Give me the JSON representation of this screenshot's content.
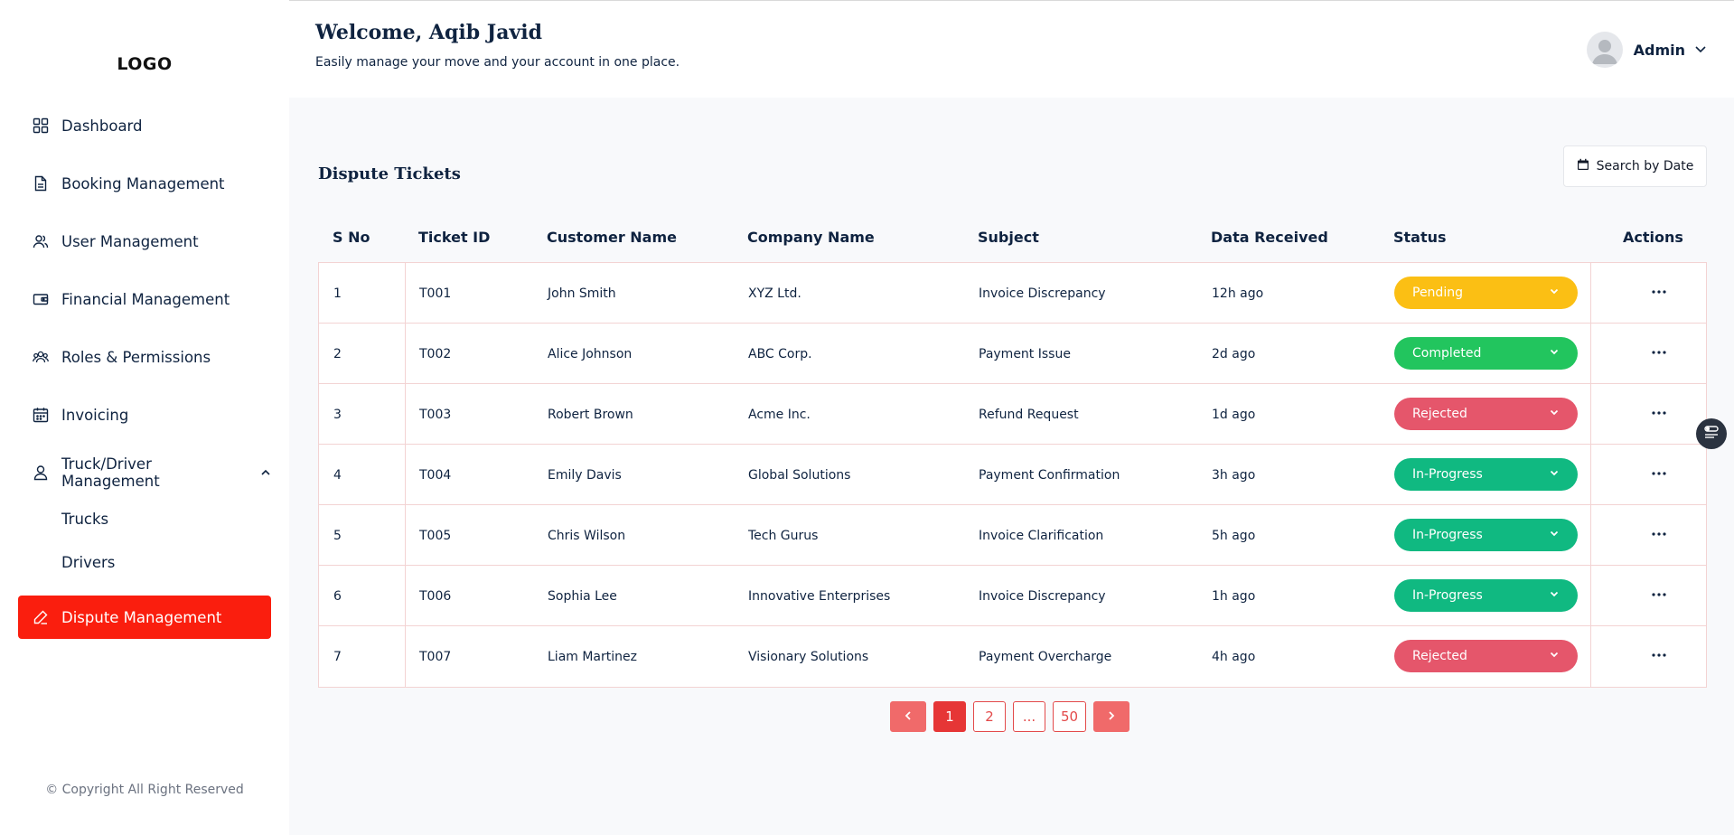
{
  "sidebar": {
    "logo": "LOGO",
    "items": [
      {
        "label": "Dashboard",
        "icon": "dashboard-icon"
      },
      {
        "label": "Booking Management",
        "icon": "document-icon"
      },
      {
        "label": "User Management",
        "icon": "users-icon"
      },
      {
        "label": "Financial Management",
        "icon": "wallet-icon"
      },
      {
        "label": "Roles & Permissions",
        "icon": "group-icon"
      },
      {
        "label": "Invoicing",
        "icon": "calendar-icon"
      },
      {
        "label": "Truck/Driver Management",
        "icon": "user-icon",
        "expanded": true
      }
    ],
    "subitems": [
      "Trucks",
      "Drivers"
    ],
    "active_item": {
      "label": "Dispute Management",
      "icon": "edit-icon"
    },
    "copyright": "© Copyright All Right Reserved"
  },
  "header": {
    "welcome": "Welcome, Aqib Javid",
    "subtitle": "Easily manage your move and your account in one place.",
    "user_label": "Admin"
  },
  "main": {
    "title": "Dispute Tickets",
    "search_date_label": "Search by Date",
    "columns": [
      "S No",
      "Ticket ID",
      "Customer Name",
      "Company Name",
      "Subject",
      "Data Received",
      "Status",
      "Actions"
    ],
    "rows": [
      {
        "sno": "1",
        "ticket": "T001",
        "customer": "John Smith",
        "company": "XYZ Ltd.",
        "subject": "Invoice Discrepancy",
        "received": "12h ago",
        "status": "Pending"
      },
      {
        "sno": "2",
        "ticket": "T002",
        "customer": "Alice Johnson",
        "company": "ABC Corp.",
        "subject": "Payment Issue",
        "received": "2d ago",
        "status": "Completed"
      },
      {
        "sno": "3",
        "ticket": "T003",
        "customer": "Robert Brown",
        "company": "Acme Inc.",
        "subject": "Refund Request",
        "received": "1d ago",
        "status": "Rejected"
      },
      {
        "sno": "4",
        "ticket": "T004",
        "customer": "Emily Davis",
        "company": "Global Solutions",
        "subject": "Payment Confirmation",
        "received": "3h ago",
        "status": "In-Progress"
      },
      {
        "sno": "5",
        "ticket": "T005",
        "customer": "Chris Wilson",
        "company": "Tech Gurus",
        "subject": "Invoice Clarification",
        "received": "5h ago",
        "status": "In-Progress"
      },
      {
        "sno": "6",
        "ticket": "T006",
        "customer": "Sophia Lee",
        "company": "Innovative Enterprises",
        "subject": "Invoice Discrepancy",
        "received": "1h ago",
        "status": "In-Progress"
      },
      {
        "sno": "7",
        "ticket": "T007",
        "customer": "Liam Martinez",
        "company": "Visionary Solutions",
        "subject": "Payment Overcharge",
        "received": "4h ago",
        "status": "Rejected"
      }
    ],
    "status_colors": {
      "Pending": "#fbbf14",
      "Completed": "#22c55e",
      "Rejected": "#e5566b",
      "In-Progress": "#10b981"
    },
    "pagination": {
      "prev_icon": "chevron-left-icon",
      "pages": [
        "1",
        "2",
        "...",
        "50"
      ],
      "current": "1",
      "next_icon": "chevron-right-icon"
    }
  },
  "colors": {
    "accent": "#fa1e0e",
    "text": "#0f2340",
    "background": "#f8f9fb"
  }
}
